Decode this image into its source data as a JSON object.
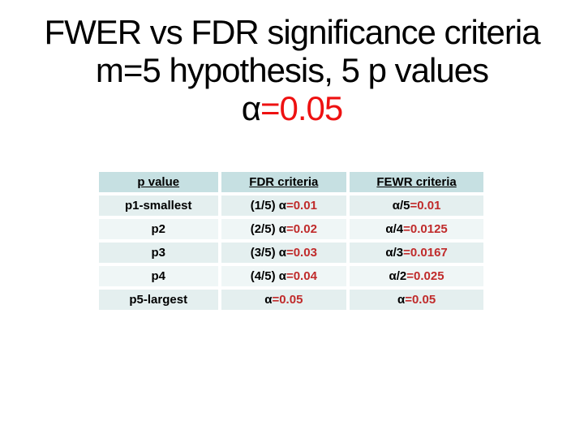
{
  "title": {
    "line1": "FWER vs FDR significance criteria",
    "line2": "m=5 hypothesis, 5 p values",
    "line3_black": "α",
    "line3_red": "=0.05"
  },
  "colors": {
    "title_red": "#ee1111",
    "table_value_red": "#c02b2b",
    "header_bg": "#c6e0e2",
    "row_odd_bg": "#e4efef",
    "row_even_bg": "#eff6f6",
    "text": "#000000",
    "background": "#ffffff"
  },
  "table": {
    "headers": [
      "p value",
      "FDR criteria",
      "FEWR criteria"
    ],
    "rows": [
      {
        "p": "p1-smallest",
        "fdr_black": "(1/5) α",
        "fdr_red": "=0.01",
        "fewr_black": "α/5",
        "fewr_red": "=0.01"
      },
      {
        "p": "p2",
        "fdr_black": "(2/5) α",
        "fdr_red": "=0.02",
        "fewr_black": "α/4",
        "fewr_red": "=0.0125"
      },
      {
        "p": "p3",
        "fdr_black": "(3/5) α",
        "fdr_red": "=0.03",
        "fewr_black": "α/3",
        "fewr_red": "=0.0167"
      },
      {
        "p": "p4",
        "fdr_black": "(4/5) α",
        "fdr_red": "=0.04",
        "fewr_black": "α/2",
        "fewr_red": "=0.025"
      },
      {
        "p": "p5-largest",
        "fdr_black": "α",
        "fdr_red": "=0.05",
        "fewr_black": "α",
        "fewr_red": "=0.05"
      }
    ]
  }
}
